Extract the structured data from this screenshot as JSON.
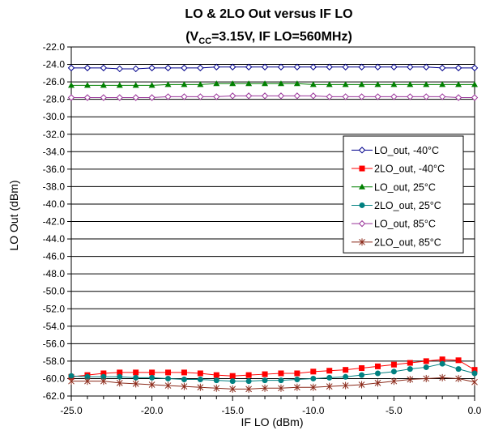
{
  "chart_data": {
    "type": "line",
    "title": "LO & 2LO Out versus IF LO",
    "subtitle": {
      "prefix": "(V",
      "sub": "CC",
      "suffix": "=3.15V, IF LO=560MHz)"
    },
    "xlabel": "IF LO (dBm)",
    "ylabel": "LO Out (dBm)",
    "xlim": [
      -25,
      0
    ],
    "ylim": [
      -62,
      -22
    ],
    "x_ticks": [
      -25,
      -20,
      -15,
      -10,
      -5,
      0
    ],
    "x_tick_labels": [
      "-25.0",
      "-20.0",
      "-15.0",
      "-10.0",
      "-5.0",
      "0.0"
    ],
    "y_ticks": [
      -22,
      -24,
      -26,
      -28,
      -30,
      -32,
      -34,
      -36,
      -38,
      -40,
      -42,
      -44,
      -46,
      -48,
      -50,
      -52,
      -54,
      -56,
      -58,
      -60,
      -62
    ],
    "y_tick_labels": [
      "-22.0",
      "-24.0",
      "-26.0",
      "-28.0",
      "-30.0",
      "-32.0",
      "-34.0",
      "-36.0",
      "-38.0",
      "-40.0",
      "-42.0",
      "-44.0",
      "-46.0",
      "-48.0",
      "-50.0",
      "-52.0",
      "-54.0",
      "-56.0",
      "-58.0",
      "-60.0",
      "-62.0"
    ],
    "grid": "horizontal",
    "legend_position": "right-middle",
    "x": [
      -25,
      -24,
      -23,
      -22,
      -21,
      -20,
      -19,
      -18,
      -17,
      -16,
      -15,
      -14,
      -13,
      -12,
      -11,
      -10,
      -9,
      -8,
      -7,
      -6,
      -5,
      -4,
      -3,
      -2,
      -1,
      0
    ],
    "series": [
      {
        "name": "LO_out, -40°C",
        "color": "#00008B",
        "marker": "diamond-open",
        "values": [
          -24.4,
          -24.4,
          -24.4,
          -24.5,
          -24.5,
          -24.4,
          -24.4,
          -24.4,
          -24.4,
          -24.3,
          -24.3,
          -24.3,
          -24.3,
          -24.3,
          -24.3,
          -24.3,
          -24.3,
          -24.3,
          -24.3,
          -24.3,
          -24.3,
          -24.3,
          -24.3,
          -24.4,
          -24.4,
          -24.4
        ]
      },
      {
        "name": "2LO_out, -40°C",
        "color": "#FF0000",
        "marker": "square",
        "values": [
          -59.8,
          -59.6,
          -59.4,
          -59.3,
          -59.3,
          -59.3,
          -59.3,
          -59.3,
          -59.4,
          -59.6,
          -59.7,
          -59.6,
          -59.5,
          -59.4,
          -59.4,
          -59.2,
          -59.1,
          -59.0,
          -58.8,
          -58.6,
          -58.4,
          -58.2,
          -58.0,
          -57.8,
          -57.9,
          -59.0
        ]
      },
      {
        "name": "LO_out, 25°C",
        "color": "#008000",
        "marker": "triangle",
        "values": [
          -26.4,
          -26.4,
          -26.4,
          -26.4,
          -26.4,
          -26.4,
          -26.3,
          -26.3,
          -26.3,
          -26.2,
          -26.2,
          -26.2,
          -26.2,
          -26.2,
          -26.2,
          -26.3,
          -26.3,
          -26.3,
          -26.3,
          -26.3,
          -26.3,
          -26.3,
          -26.3,
          -26.3,
          -26.3,
          -26.3
        ]
      },
      {
        "name": "2LO_out, 25°C",
        "color": "#008080",
        "marker": "circle",
        "values": [
          -59.7,
          -59.8,
          -59.8,
          -59.8,
          -59.9,
          -59.9,
          -60.0,
          -60.1,
          -60.1,
          -60.2,
          -60.3,
          -60.3,
          -60.2,
          -60.2,
          -60.1,
          -60.0,
          -59.9,
          -59.8,
          -59.6,
          -59.4,
          -59.2,
          -58.9,
          -58.7,
          -58.3,
          -58.9,
          -59.4
        ]
      },
      {
        "name": "LO_out, 85°C",
        "color": "#993399",
        "marker": "diamond-open",
        "values": [
          -27.8,
          -27.8,
          -27.8,
          -27.8,
          -27.8,
          -27.8,
          -27.7,
          -27.7,
          -27.7,
          -27.7,
          -27.6,
          -27.6,
          -27.6,
          -27.6,
          -27.6,
          -27.6,
          -27.7,
          -27.7,
          -27.7,
          -27.7,
          -27.7,
          -27.7,
          -27.7,
          -27.7,
          -27.8,
          -27.8
        ]
      },
      {
        "name": "2LO_out, 85°C",
        "color": "#8B2A1A",
        "marker": "star",
        "values": [
          -60.3,
          -60.3,
          -60.3,
          -60.5,
          -60.6,
          -60.7,
          -60.8,
          -60.9,
          -61.0,
          -61.1,
          -61.2,
          -61.2,
          -61.1,
          -61.1,
          -61.0,
          -61.0,
          -60.9,
          -60.8,
          -60.7,
          -60.5,
          -60.3,
          -60.1,
          -60.0,
          -59.9,
          -60.0,
          -60.4
        ]
      }
    ]
  }
}
